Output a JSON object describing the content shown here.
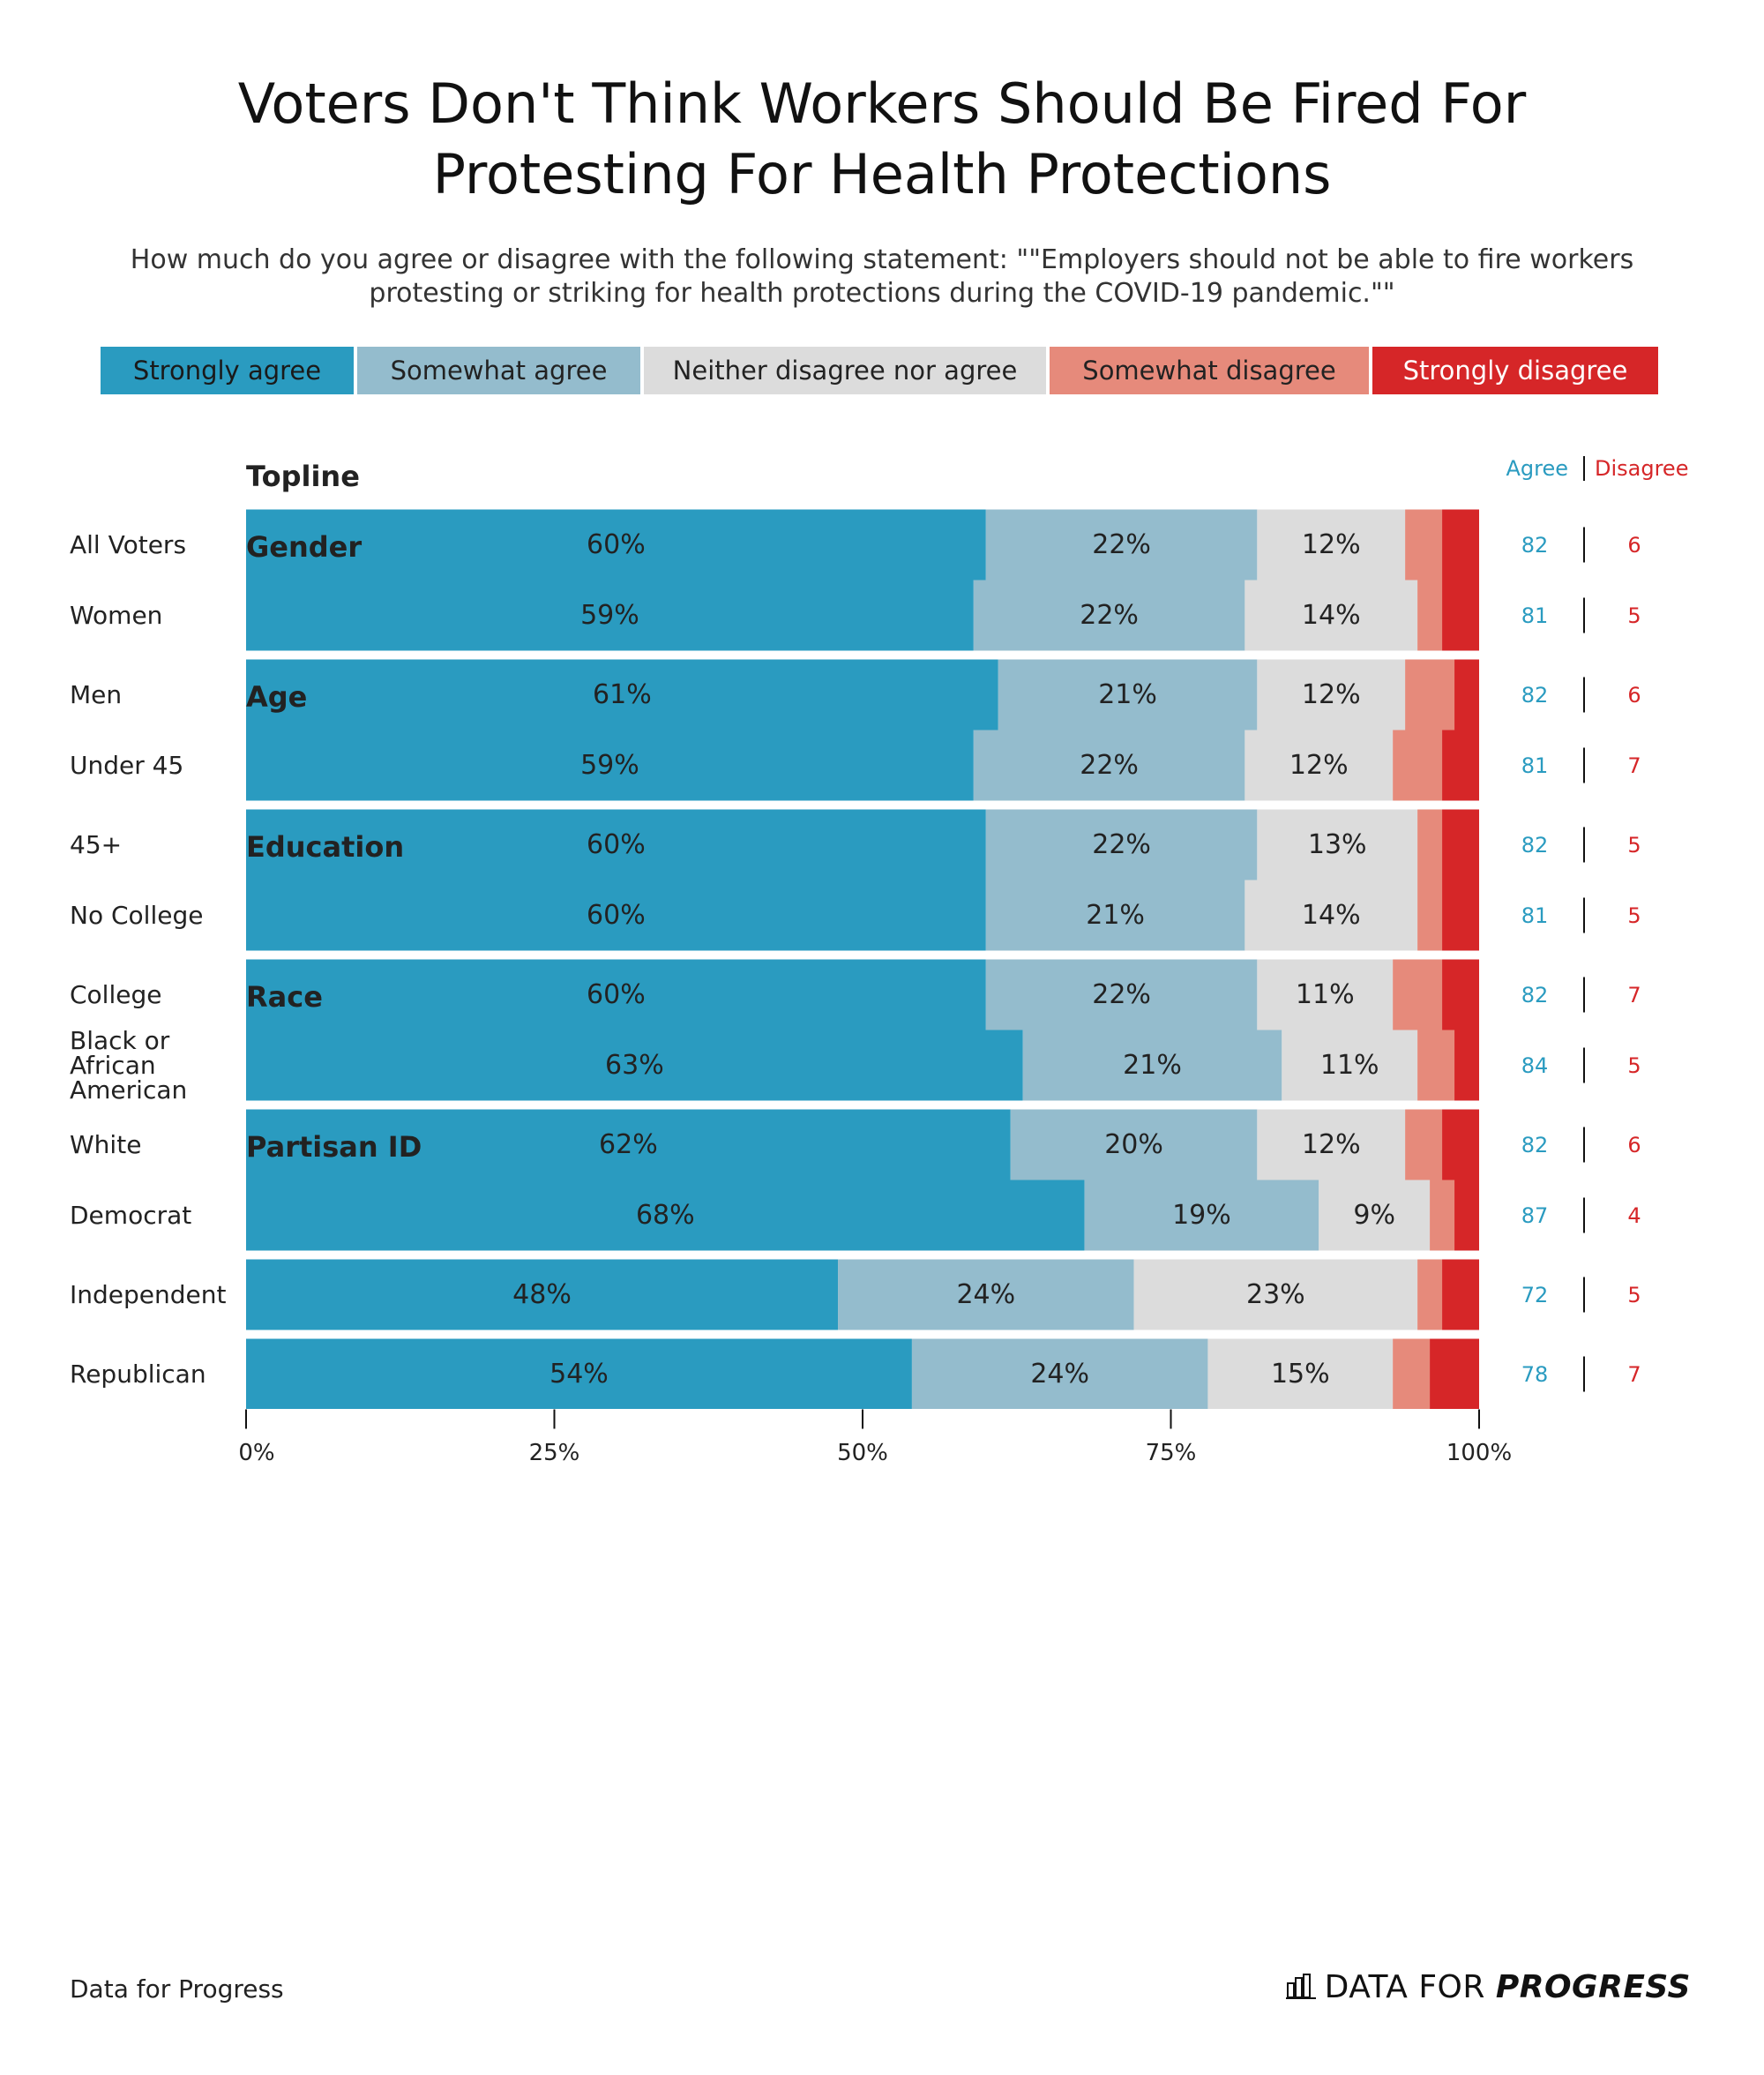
{
  "chart_data": {
    "type": "stacked-bar",
    "title": "Voters Don't Think Workers Should Be Fired For Protesting For Health Protections",
    "subtitle": "How much do you agree or disagree with the following statement: \"\"Employers should not be able to fire workers protesting or striking for health protections during the COVID-19 pandemic.\"\"",
    "groups": [
      {
        "name": "Topline",
        "categories": [
          "All Voters"
        ]
      },
      {
        "name": "Gender",
        "categories": [
          "Women",
          "Men"
        ]
      },
      {
        "name": "Age",
        "categories": [
          "Under 45",
          "45+"
        ]
      },
      {
        "name": "Education",
        "categories": [
          "No College",
          "College"
        ]
      },
      {
        "name": "Race",
        "categories": [
          "Black or African American",
          "White"
        ]
      },
      {
        "name": "Partisan ID",
        "categories": [
          "Democrat",
          "Independent",
          "Republican"
        ]
      }
    ],
    "series": [
      {
        "name": "Strongly agree",
        "color": "#2a9bc0",
        "values": [
          60,
          59,
          61,
          59,
          60,
          60,
          60,
          63,
          62,
          68,
          48,
          54
        ],
        "value_labels": [
          "60%",
          "59%",
          "61%",
          "59%",
          "60%",
          "60%",
          "60%",
          "63%",
          "62%",
          "68%",
          "48%",
          "54%"
        ]
      },
      {
        "name": "Somewhat agree",
        "color": "#94bccd",
        "values": [
          22,
          22,
          21,
          22,
          22,
          21,
          22,
          21,
          20,
          19,
          24,
          24
        ],
        "value_labels": [
          "22%",
          "22%",
          "21%",
          "22%",
          "22%",
          "21%",
          "22%",
          "21%",
          "20%",
          "19%",
          "24%",
          "24%"
        ]
      },
      {
        "name": "Neither disagree nor agree",
        "color": "#dcdcdc",
        "values": [
          12,
          14,
          12,
          12,
          13,
          14,
          11,
          11,
          12,
          9,
          23,
          15
        ],
        "value_labels": [
          "12%",
          "14%",
          "12%",
          "12%",
          "13%",
          "14%",
          "11%",
          "11%",
          "12%",
          "9%",
          "23%",
          "15%"
        ]
      },
      {
        "name": "Somewhat disagree",
        "color": "#e68a7b",
        "values": [
          3,
          2,
          4,
          4,
          2,
          2,
          4,
          3,
          3,
          2,
          2,
          3
        ]
      },
      {
        "name": "Strongly disagree",
        "color": "#d62628",
        "values": [
          3,
          3,
          2,
          3,
          3,
          3,
          3,
          2,
          3,
          2,
          3,
          4
        ]
      }
    ],
    "xlim": [
      0,
      100
    ],
    "xticks": [
      {
        "value": 0,
        "label": "0%"
      },
      {
        "value": 25,
        "label": "25%"
      },
      {
        "value": 50,
        "label": "50%"
      },
      {
        "value": 75,
        "label": "75%"
      },
      {
        "value": 100,
        "label": "100%"
      }
    ],
    "totals": {
      "agree_label": "Agree",
      "disagree_label": "Disagree",
      "agree": [
        82,
        81,
        82,
        81,
        82,
        81,
        82,
        84,
        82,
        87,
        72,
        78
      ],
      "disagree": [
        6,
        5,
        6,
        7,
        5,
        5,
        7,
        5,
        6,
        4,
        5,
        7
      ]
    },
    "source": "Data for Progress",
    "logo": {
      "text": "DATA FOR",
      "emphasis": "PROGRESS"
    }
  }
}
